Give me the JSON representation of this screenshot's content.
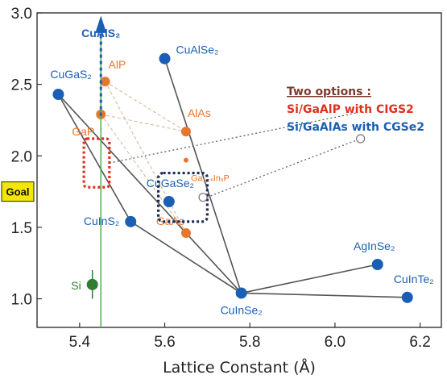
{
  "chart_data": {
    "type": "scatter",
    "xlabel": "Lattice Constant (Å)",
    "ylabel": "",
    "xlim": [
      5.3,
      6.25
    ],
    "ylim": [
      0.8,
      3.0
    ],
    "x_ticks": [
      {
        "value": 5.4,
        "label": "5.4"
      },
      {
        "value": 5.6,
        "label": "5.6"
      },
      {
        "value": 5.8,
        "label": "5.8"
      },
      {
        "value": 6.0,
        "label": "6.0"
      },
      {
        "value": 6.2,
        "label": "6.2"
      }
    ],
    "y_ticks": [
      {
        "value": 1.0,
        "label": "1.0"
      },
      {
        "value": 1.5,
        "label": "1.5"
      },
      {
        "value": 2.0,
        "label": "2.0"
      },
      {
        "value": 2.5,
        "label": "2.5"
      },
      {
        "value": 3.0,
        "label": "3.0"
      }
    ],
    "grid": false,
    "colors": {
      "chalcopyrite": "#1a5fb4",
      "iii_v": "#e8762c",
      "si": "#2e7d32",
      "lines": "#555555",
      "goal_line": "#4caf50",
      "red_box": "#e0301e",
      "navy_box": "#1a2a55",
      "note_dark": "#7a3b2e",
      "note_red": "#e0301e",
      "note_blue": "#1a5fb4",
      "goal_fill": "#f3e600"
    },
    "points": [
      {
        "name": "CuGaS2",
        "label": "CuGaS₂",
        "x": 5.35,
        "y": 2.43,
        "group": "chalcopyrite"
      },
      {
        "name": "CuAlSe2",
        "label": "CuAlSe₂",
        "x": 5.6,
        "y": 2.68,
        "group": "chalcopyrite"
      },
      {
        "name": "CuGaSe2",
        "label": "CuGaSe₂",
        "x": 5.61,
        "y": 1.68,
        "group": "chalcopyrite"
      },
      {
        "name": "CuInS2",
        "label": "CuInS₂",
        "x": 5.52,
        "y": 1.54,
        "group": "chalcopyrite"
      },
      {
        "name": "CuInSe2",
        "label": "CuInSe₂",
        "x": 5.78,
        "y": 1.04,
        "group": "chalcopyrite"
      },
      {
        "name": "AgInSe2",
        "label": "AgInSe₂",
        "x": 6.1,
        "y": 1.24,
        "group": "chalcopyrite"
      },
      {
        "name": "CuInTe2",
        "label": "CuInTe₂",
        "x": 6.17,
        "y": 1.01,
        "group": "chalcopyrite"
      },
      {
        "name": "AlP",
        "label": "AlP",
        "x": 5.46,
        "y": 2.52,
        "group": "iii_v"
      },
      {
        "name": "GaP",
        "label": "GaP",
        "x": 5.45,
        "y": 2.29,
        "group": "iii_v"
      },
      {
        "name": "AlAs",
        "label": "AlAs",
        "x": 5.65,
        "y": 2.17,
        "group": "iii_v"
      },
      {
        "name": "GaAs",
        "label": "GaAs",
        "x": 5.65,
        "y": 1.46,
        "group": "iii_v"
      },
      {
        "name": "GaInP",
        "label": "Ga₁₋ₓInₓP",
        "x": 5.65,
        "y": 1.97,
        "group": "iii_v_small"
      },
      {
        "name": "Si",
        "label": "Si",
        "x": 5.43,
        "y": 1.1,
        "group": "si"
      }
    ],
    "series_lines": [
      [
        [
          5.35,
          2.43
        ],
        [
          5.52,
          1.54
        ],
        [
          5.78,
          1.04
        ]
      ],
      [
        [
          5.35,
          2.43
        ],
        [
          5.78,
          1.04
        ]
      ],
      [
        [
          5.6,
          2.68
        ],
        [
          5.78,
          1.04
        ]
      ],
      [
        [
          5.78,
          1.04
        ],
        [
          6.1,
          1.24
        ]
      ],
      [
        [
          5.78,
          1.04
        ],
        [
          6.17,
          1.01
        ]
      ]
    ],
    "dashed_lines": [
      [
        [
          5.46,
          2.52
        ],
        [
          5.65,
          2.17
        ]
      ],
      [
        [
          5.45,
          2.29
        ],
        [
          5.65,
          1.46
        ]
      ],
      [
        [
          5.45,
          2.29
        ],
        [
          5.65,
          2.17
        ]
      ],
      [
        [
          5.46,
          2.52
        ],
        [
          5.65,
          1.46
        ]
      ]
    ],
    "annotations": {
      "top_label": "CuAlS₂",
      "goal_label": "Goal",
      "goal_y": 1.75,
      "note_title": "Two options :",
      "note_line1": "Si/GaAlP  with CIGS2",
      "note_line2": "Si/GaAlAs with CGSe2"
    }
  }
}
